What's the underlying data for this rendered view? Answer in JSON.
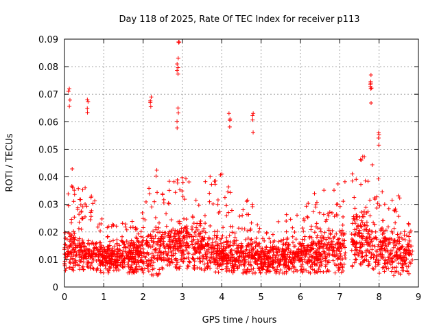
{
  "chart_data": {
    "type": "scatter",
    "title": "Day 118 of 2025, Rate Of TEC Index for receiver p113",
    "xlabel": "GPS time / hours",
    "ylabel": "ROTI / TECUs",
    "xlim": [
      0,
      9
    ],
    "ylim": [
      0,
      0.09
    ],
    "grid": true,
    "marker": "+",
    "marker_color": "#ff0000",
    "x_ticks": [
      0,
      1,
      2,
      3,
      4,
      5,
      6,
      7,
      8,
      9
    ],
    "x_tick_labels": [
      "0",
      "1",
      "2",
      "3",
      "4",
      "5",
      "6",
      "7",
      "8",
      "9"
    ],
    "y_ticks": [
      0,
      0.01,
      0.02,
      0.03,
      0.04,
      0.05,
      0.06,
      0.07,
      0.08,
      0.09
    ],
    "y_tick_labels": [
      "0",
      "0.01",
      "0.02",
      "0.03",
      "0.04",
      "0.05",
      "0.06",
      "0.07",
      "0.08",
      "0.09"
    ],
    "data_extent_hours": [
      0,
      8.85
    ],
    "data_gap_hours": [
      7.15,
      7.3
    ],
    "notable_peaks": [
      {
        "x": 0.12,
        "y": 0.072
      },
      {
        "x": 0.6,
        "y": 0.068
      },
      {
        "x": 2.2,
        "y": 0.069
      },
      {
        "x": 2.9,
        "y": 0.089
      },
      {
        "x": 2.88,
        "y": 0.081
      },
      {
        "x": 2.88,
        "y": 0.065
      },
      {
        "x": 4.2,
        "y": 0.063
      },
      {
        "x": 4.8,
        "y": 0.063
      },
      {
        "x": 7.8,
        "y": 0.077
      },
      {
        "x": 7.78,
        "y": 0.074
      },
      {
        "x": 8.0,
        "y": 0.056
      }
    ],
    "series_envelope": [
      {
        "x": 0.0,
        "low": 0.006,
        "mid": 0.012,
        "high": 0.03
      },
      {
        "x": 0.2,
        "low": 0.006,
        "mid": 0.013,
        "high": 0.045
      },
      {
        "x": 0.5,
        "low": 0.006,
        "mid": 0.011,
        "high": 0.04
      },
      {
        "x": 0.8,
        "low": 0.006,
        "mid": 0.011,
        "high": 0.035
      },
      {
        "x": 1.0,
        "low": 0.005,
        "mid": 0.01,
        "high": 0.022
      },
      {
        "x": 1.5,
        "low": 0.005,
        "mid": 0.011,
        "high": 0.025
      },
      {
        "x": 2.0,
        "low": 0.005,
        "mid": 0.012,
        "high": 0.03
      },
      {
        "x": 2.3,
        "low": 0.004,
        "mid": 0.013,
        "high": 0.045
      },
      {
        "x": 2.7,
        "low": 0.006,
        "mid": 0.015,
        "high": 0.04
      },
      {
        "x": 3.0,
        "low": 0.007,
        "mid": 0.016,
        "high": 0.04
      },
      {
        "x": 3.5,
        "low": 0.006,
        "mid": 0.015,
        "high": 0.037
      },
      {
        "x": 4.0,
        "low": 0.005,
        "mid": 0.012,
        "high": 0.045
      },
      {
        "x": 4.5,
        "low": 0.005,
        "mid": 0.011,
        "high": 0.03
      },
      {
        "x": 4.8,
        "low": 0.005,
        "mid": 0.012,
        "high": 0.04
      },
      {
        "x": 5.0,
        "low": 0.005,
        "mid": 0.01,
        "high": 0.022
      },
      {
        "x": 5.5,
        "low": 0.005,
        "mid": 0.011,
        "high": 0.025
      },
      {
        "x": 6.0,
        "low": 0.005,
        "mid": 0.012,
        "high": 0.033
      },
      {
        "x": 6.5,
        "low": 0.005,
        "mid": 0.013,
        "high": 0.035
      },
      {
        "x": 7.0,
        "low": 0.005,
        "mid": 0.014,
        "high": 0.04
      },
      {
        "x": 7.4,
        "low": 0.008,
        "mid": 0.018,
        "high": 0.045
      },
      {
        "x": 7.7,
        "low": 0.008,
        "mid": 0.018,
        "high": 0.05
      },
      {
        "x": 8.0,
        "low": 0.005,
        "mid": 0.014,
        "high": 0.04
      },
      {
        "x": 8.4,
        "low": 0.004,
        "mid": 0.013,
        "high": 0.033
      },
      {
        "x": 8.85,
        "low": 0.005,
        "mid": 0.013,
        "high": 0.035
      }
    ]
  }
}
